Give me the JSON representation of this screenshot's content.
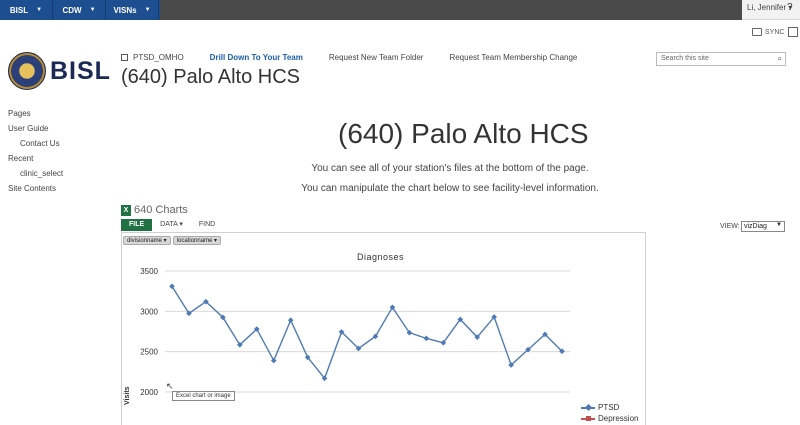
{
  "suite": {
    "nav": [
      {
        "label": "BISL"
      },
      {
        "label": "CDW"
      },
      {
        "label": "VISNs"
      }
    ],
    "user": "Li, Jennifer",
    "help": "?",
    "sync_label": "SYNC"
  },
  "logo": {
    "text": "BISL"
  },
  "toplinks": [
    {
      "label": "PTSD_OMHO"
    },
    {
      "label": "Drill Down To Your Team"
    },
    {
      "label": "Request New Team Folder"
    },
    {
      "label": "Request Team Membership Change"
    }
  ],
  "site_title": "(640) Palo Alto HCS",
  "search": {
    "placeholder": "Search this site"
  },
  "leftnav": [
    {
      "label": "Pages",
      "sub": false
    },
    {
      "label": "User Guide",
      "sub": false
    },
    {
      "label": "Contact Us",
      "sub": true
    },
    {
      "label": "Recent",
      "sub": false
    },
    {
      "label": "clinic_select",
      "sub": true
    },
    {
      "label": "Site Contents",
      "sub": false
    }
  ],
  "main": {
    "title": "(640) Palo Alto HCS",
    "line1": "You can see all of your station's files at the bottom of the page.",
    "line2": "You can manipulate the chart below to see facility-level information."
  },
  "webpart": {
    "title": "640 Charts",
    "xl_icon": "X",
    "tabs": [
      {
        "label": "FILE"
      },
      {
        "label": "DATA ▾"
      },
      {
        "label": "FIND"
      }
    ],
    "view_label": "VIEW:",
    "view_value": "vizDiag",
    "filters": [
      {
        "label": "divisionname ▾"
      },
      {
        "label": "locationname ▾"
      }
    ],
    "tooltip": "Excel chart or image"
  },
  "colors": {
    "ptsd": "#4f7ab3",
    "depression": "#c0504d",
    "excel": "#207245",
    "brand": "#1d4e8f"
  },
  "chart_data": {
    "type": "line",
    "title": "Diagnoses",
    "ylabel": "Visits",
    "ylim": [
      2000,
      3500
    ],
    "yticks": [
      3500,
      3000,
      2500,
      2000
    ],
    "grid": true,
    "legend": "right",
    "series": [
      {
        "name": "PTSD",
        "values": [
          3310,
          2975,
          3120,
          2925,
          2585,
          2780,
          2390,
          2890,
          2430,
          2170,
          2745,
          2540,
          2690,
          3050,
          2735,
          2665,
          2610,
          2900,
          2680,
          2930,
          2335,
          2525,
          2715,
          2505
        ]
      },
      {
        "name": "Depression",
        "values": []
      }
    ]
  }
}
